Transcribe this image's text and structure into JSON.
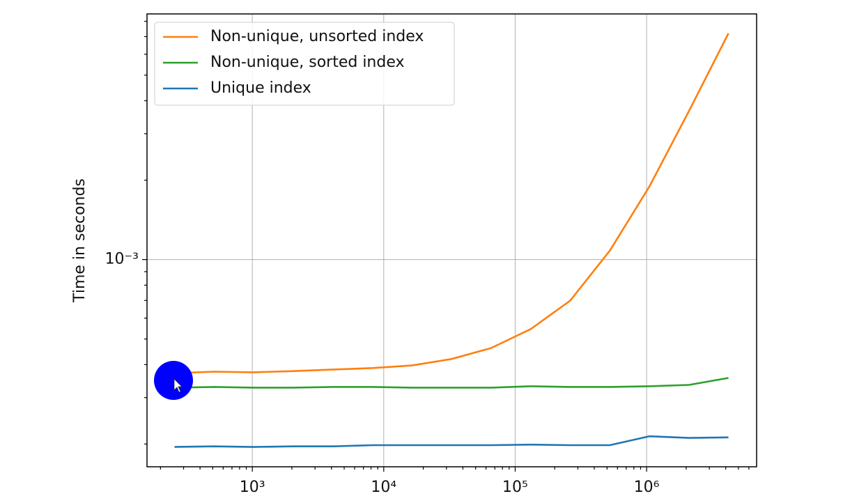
{
  "chart_data": {
    "type": "line",
    "y_label": "Time in seconds",
    "x": [
      256,
      512,
      1024,
      2048,
      4096,
      8192,
      16384,
      32768,
      65536,
      131072,
      262144,
      524288,
      1048576,
      2097152,
      4194304
    ],
    "series": [
      {
        "name": "Non-unique, unsorted index",
        "color": "#ff7f0e",
        "values": [
          0.000371,
          0.000376,
          0.000374,
          0.000378,
          0.000383,
          0.000388,
          0.000397,
          0.00042,
          0.000462,
          0.000545,
          0.000699,
          0.00108,
          0.00189,
          0.00365,
          0.0072
        ]
      },
      {
        "name": "Non-unique, sorted index",
        "color": "#2ca02c",
        "values": [
          0.000327,
          0.000329,
          0.000327,
          0.000327,
          0.000329,
          0.000329,
          0.000327,
          0.000327,
          0.000327,
          0.000331,
          0.000329,
          0.000329,
          0.000331,
          0.000335,
          0.000356
        ]
      },
      {
        "name": "Unique index",
        "color": "#1f77b4",
        "values": [
          0.000195,
          0.000196,
          0.000195,
          0.000196,
          0.000196,
          0.000198,
          0.000198,
          0.000198,
          0.000198,
          0.000199,
          0.000198,
          0.000198,
          0.000214,
          0.000211,
          0.000212
        ]
      }
    ],
    "xscale": "log",
    "yscale": "log",
    "xlim": [
      158,
      6870000
    ],
    "ylim": [
      0.000164,
      0.00853
    ],
    "xticks": [
      {
        "value": 1000,
        "label": "10³"
      },
      {
        "value": 10000,
        "label": "10⁴"
      },
      {
        "value": 100000,
        "label": "10⁵"
      },
      {
        "value": 1000000,
        "label": "10⁶"
      }
    ],
    "yticks": [
      {
        "value": 0.001,
        "label": "10⁻³"
      }
    ],
    "xminorticks": [
      200,
      300,
      400,
      500,
      600,
      700,
      800,
      900,
      2000,
      3000,
      4000,
      5000,
      6000,
      7000,
      8000,
      9000,
      20000,
      30000,
      40000,
      50000,
      60000,
      70000,
      80000,
      90000,
      200000,
      300000,
      400000,
      500000,
      600000,
      700000,
      800000,
      900000,
      2000000,
      3000000,
      4000000,
      5000000,
      6000000
    ],
    "yminorticks": [
      0.0002,
      0.0003,
      0.0004,
      0.0005,
      0.0006,
      0.0007,
      0.0008,
      0.0009,
      0.002,
      0.003,
      0.004,
      0.005,
      0.006,
      0.007,
      0.008
    ],
    "grid": true,
    "legend": "upper left"
  }
}
